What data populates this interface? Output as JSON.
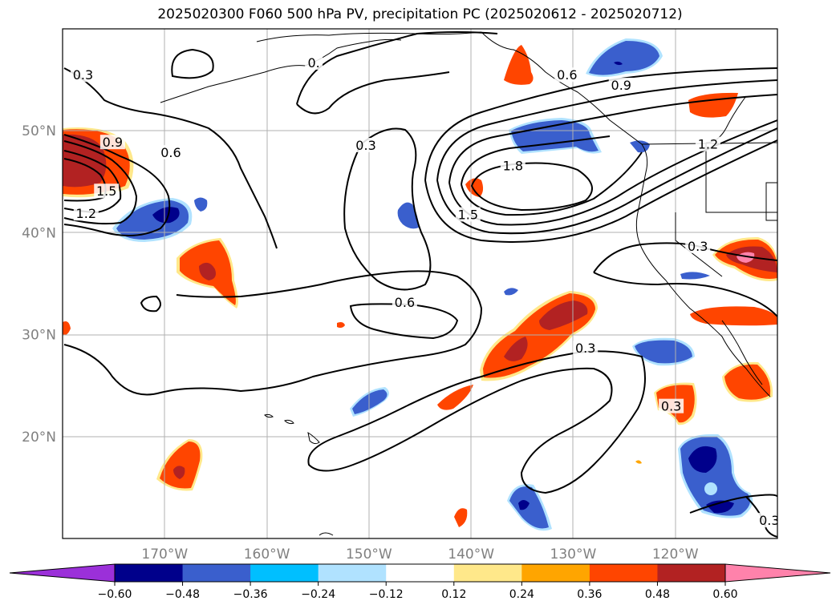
{
  "title": "2025020300 F060 500 hPa PV, precipitation PC (2025020612 - 2025020712)",
  "chart_data": {
    "type": "contour-map",
    "title": "2025020300 F060 500 hPa PV, precipitation PC (2025020612 - 2025020712)",
    "lon_range": [
      -180,
      -110
    ],
    "lat_range": [
      10,
      60
    ],
    "gridlines": true,
    "lat_ticks": [
      {
        "value": 50,
        "label": "50°N"
      },
      {
        "value": 40,
        "label": "40°N"
      },
      {
        "value": 30,
        "label": "30°N"
      },
      {
        "value": 20,
        "label": "20°N"
      }
    ],
    "lon_ticks": [
      {
        "value": -170,
        "label": "170°W"
      },
      {
        "value": -160,
        "label": "160°W"
      },
      {
        "value": -150,
        "label": "150°W"
      },
      {
        "value": -140,
        "label": "140°W"
      },
      {
        "value": -130,
        "label": "130°W"
      },
      {
        "value": -120,
        "label": "120°W"
      }
    ],
    "contour_labels": [
      {
        "text": "0.3",
        "lon": -178,
        "lat": 55.5
      },
      {
        "text": "0.",
        "lon": -155.4,
        "lat": 56.7
      },
      {
        "text": "0.6",
        "lon": -130.6,
        "lat": 55.5
      },
      {
        "text": "0.9",
        "lon": -125.3,
        "lat": 54.5
      },
      {
        "text": "0.9",
        "lon": -175.1,
        "lat": 48.9
      },
      {
        "text": "0.6",
        "lon": -169.4,
        "lat": 47.9
      },
      {
        "text": "1.5",
        "lon": -175.7,
        "lat": 44.1
      },
      {
        "text": "1.2",
        "lon": -177.7,
        "lat": 41.9
      },
      {
        "text": "0.3",
        "lon": -150.3,
        "lat": 48.6
      },
      {
        "text": "1.8",
        "lon": -135.9,
        "lat": 46.6
      },
      {
        "text": "1.5",
        "lon": -140.3,
        "lat": 41.8
      },
      {
        "text": "1.2",
        "lon": -116.8,
        "lat": 48.7
      },
      {
        "text": "0.3",
        "lon": -117.8,
        "lat": 38.7
      },
      {
        "text": "0.6",
        "lon": -146.5,
        "lat": 33.2
      },
      {
        "text": "0.3",
        "lon": -128.8,
        "lat": 28.7
      },
      {
        "text": "0.3",
        "lon": -120.4,
        "lat": 23.0
      },
      {
        "text": "0.3",
        "lon": -110.8,
        "lat": 11.8
      }
    ],
    "colorbar": {
      "levels": [
        -0.6,
        -0.48,
        -0.36,
        -0.24,
        -0.12,
        0.12,
        0.24,
        0.36,
        0.48,
        0.6
      ],
      "tick_labels": [
        "−0.60",
        "−0.48",
        "−0.36",
        "−0.24",
        "−0.12",
        "0.12",
        "0.24",
        "0.36",
        "0.48",
        "0.60"
      ],
      "colors": [
        "#9b30d9",
        "#00008b",
        "#3a5fcd",
        "#00bfff",
        "#b0e2ff",
        "#ffffff",
        "#ffe88a",
        "#ffa500",
        "#ff4500",
        "#b22222",
        "#ff82ab"
      ],
      "extend": "both"
    }
  }
}
